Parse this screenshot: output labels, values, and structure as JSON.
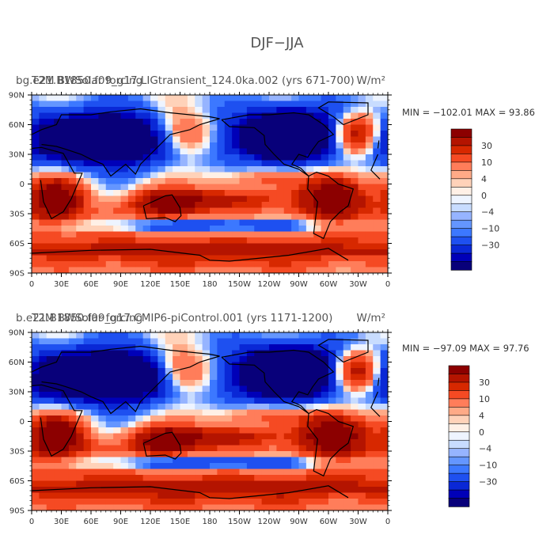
{
  "page_title": "DJF−JJA",
  "colors": {
    "levels": [
      "#08007a",
      "#0000b8",
      "#0a28d6",
      "#1e50f0",
      "#3c78ff",
      "#6496ff",
      "#96b4ff",
      "#c8dcff",
      "#eef4ff",
      "#fff0e6",
      "#ffd2b9",
      "#ffaa87",
      "#ff7d5a",
      "#f54a23",
      "#d72800",
      "#b41400",
      "#8c0000"
    ],
    "colorbar_labels": [
      "30",
      "10",
      "4",
      "0",
      "−4",
      "−10",
      "−30"
    ]
  },
  "chart_data": [
    {
      "type": "heatmap",
      "title_left": "bg.e21.B1850.f09_g17.LIGtransient_124.0ka.002 (yrs 671-700)",
      "title_overlay": "T2M BWSolar forcing",
      "units": "W/m²",
      "stats": "MIN = −102.01 MAX =  93.86",
      "min": -102.01,
      "max": 93.86,
      "x_ticks": [
        "0",
        "30E",
        "60E",
        "90E",
        "120E",
        "150E",
        "180",
        "150W",
        "120W",
        "90W",
        "60W",
        "30W",
        "0"
      ],
      "y_ticks": [
        "90N",
        "60N",
        "30N",
        "0",
        "30S",
        "60S",
        "90S"
      ],
      "xlim": [
        0,
        360
      ],
      "ylim": [
        -90,
        90
      ],
      "contour_levels": [
        -30,
        -10,
        -4,
        0,
        4,
        10,
        30
      ]
    },
    {
      "type": "heatmap",
      "title_left": "b.e21.B1850.f09_g17.CMIP6-piControl.001 (yrs 1171-1200)",
      "title_overlay": "T2M BWSolar forcing",
      "units": "W/m²",
      "stats": "MIN = −97.09 MAX =  97.76",
      "min": -97.09,
      "max": 97.76,
      "x_ticks": [
        "0",
        "30E",
        "60E",
        "90E",
        "120E",
        "150E",
        "180",
        "150W",
        "120W",
        "90W",
        "60W",
        "30W",
        "0"
      ],
      "y_ticks": [
        "90N",
        "60N",
        "30N",
        "0",
        "30S",
        "60S",
        "90S"
      ],
      "xlim": [
        0,
        360
      ],
      "ylim": [
        -90,
        90
      ],
      "contour_levels": [
        -30,
        -10,
        -4,
        0,
        4,
        10,
        30
      ]
    }
  ]
}
